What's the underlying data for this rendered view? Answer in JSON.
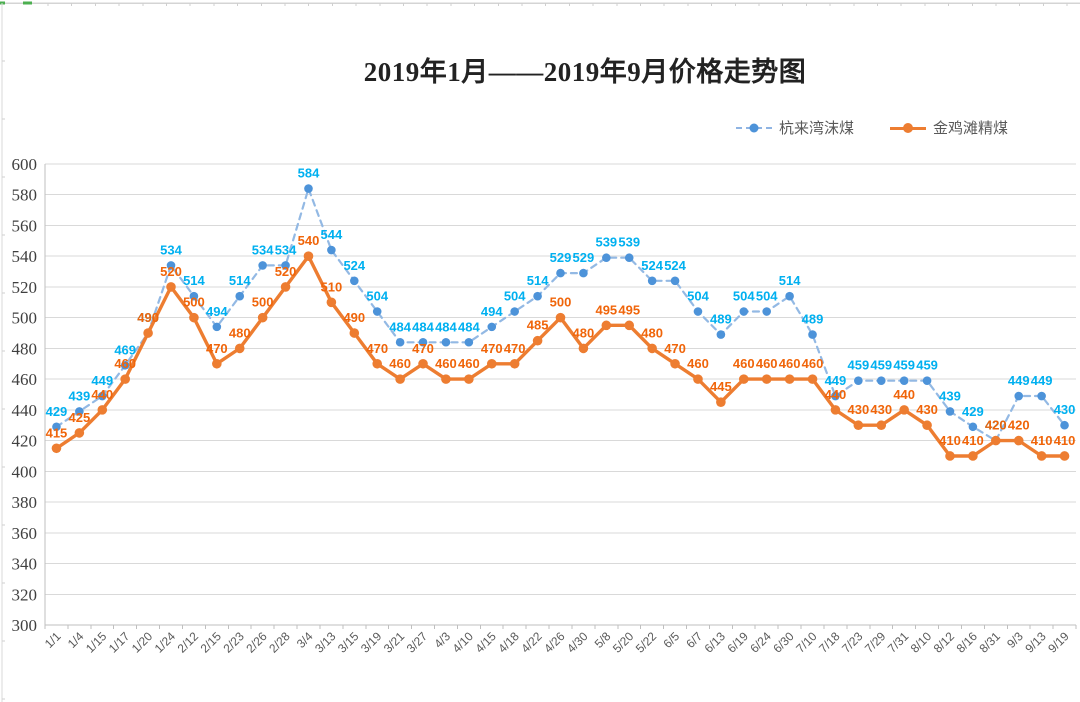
{
  "chart_data": {
    "type": "line",
    "title": "2019年1月——2019年9月价格走势图",
    "categories": [
      "1/1",
      "1/4",
      "1/15",
      "1/17",
      "1/20",
      "1/24",
      "2/12",
      "2/15",
      "2/23",
      "2/26",
      "2/28",
      "3/4",
      "3/13",
      "3/15",
      "3/19",
      "3/21",
      "3/27",
      "4/3",
      "4/10",
      "4/15",
      "4/18",
      "4/22",
      "4/26",
      "4/30",
      "5/8",
      "5/20",
      "5/22",
      "6/5",
      "6/7",
      "6/13",
      "6/19",
      "6/24",
      "6/30",
      "7/10",
      "7/18",
      "7/23",
      "7/29",
      "7/31",
      "8/10",
      "8/12",
      "8/16",
      "8/31",
      "9/3",
      "9/13",
      "9/19"
    ],
    "series": [
      {
        "name": "杭来湾沫煤",
        "values": [
          429,
          439,
          449,
          469,
          490,
          534,
          514,
          494,
          514,
          534,
          534,
          584,
          544,
          524,
          504,
          484,
          484,
          484,
          484,
          494,
          504,
          514,
          529,
          529,
          539,
          539,
          524,
          524,
          504,
          489,
          504,
          504,
          514,
          489,
          449,
          459,
          459,
          459,
          459,
          439,
          429,
          420,
          449,
          449,
          430
        ],
        "line_color": "#93B9E4",
        "marker_color": "#4D93D9",
        "label_color": "#00B0F0",
        "dashed": true
      },
      {
        "name": "金鸡滩精煤",
        "values": [
          415,
          425,
          440,
          460,
          490,
          520,
          500,
          470,
          480,
          500,
          520,
          540,
          510,
          490,
          470,
          460,
          470,
          460,
          460,
          470,
          470,
          485,
          500,
          480,
          495,
          495,
          480,
          470,
          460,
          445,
          460,
          460,
          460,
          460,
          440,
          430,
          430,
          440,
          430,
          410,
          410,
          420,
          420,
          410,
          410
        ],
        "line_color": "#ED7D31",
        "marker_color": "#ED7D31",
        "label_color": "#F0650A",
        "dashed": false
      }
    ],
    "ylim": [
      300,
      600
    ],
    "ytick_step": 20,
    "yticks": [
      300,
      320,
      340,
      360,
      380,
      400,
      420,
      440,
      460,
      480,
      500,
      520,
      540,
      560,
      580,
      600
    ],
    "grid": true,
    "data_labels": true,
    "legend_position": "top-right"
  }
}
